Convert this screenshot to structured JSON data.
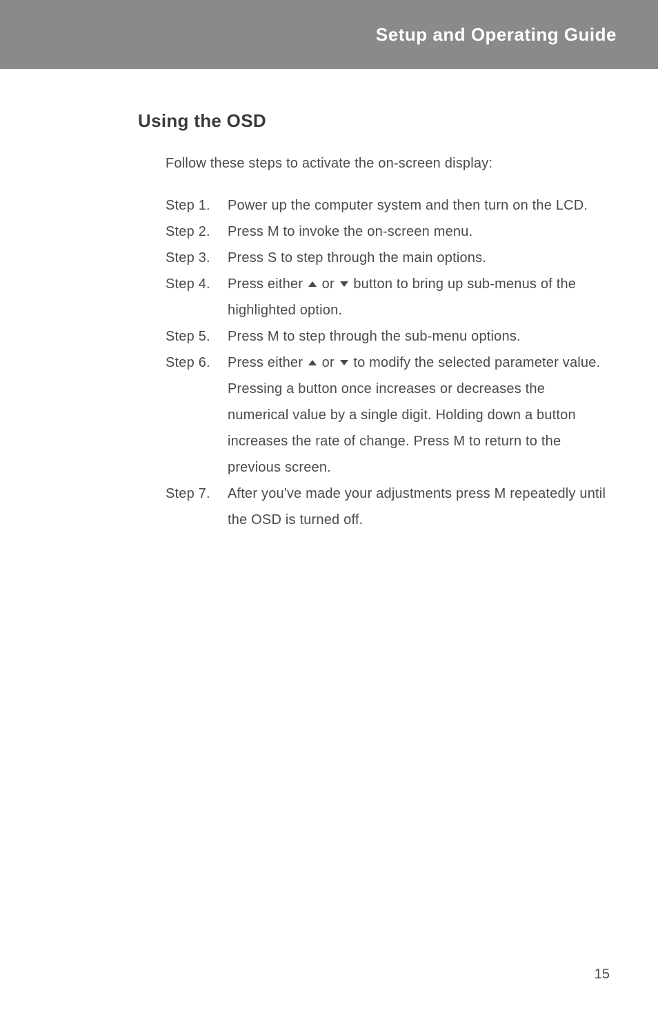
{
  "header": {
    "title": "Setup and Operating Guide"
  },
  "section": {
    "title": "Using the OSD",
    "intro": "Follow these steps to activate the on-screen display:"
  },
  "steps": [
    {
      "label": "Step 1.",
      "text": "Power up the computer system and then turn on the LCD."
    },
    {
      "label": "Step 2.",
      "text": "Press M to invoke the on-screen menu."
    },
    {
      "label": "Step 3.",
      "text": "Press S to step through the main options."
    },
    {
      "label": "Step 4.",
      "text_pre": "Press either ",
      "text_mid": " or ",
      "text_post": " button to bring up sub-menus of the highlighted option.",
      "has_arrows": true
    },
    {
      "label": "Step 5.",
      "text": "Press M to step through the sub-menu options."
    },
    {
      "label": "Step 6.",
      "text_pre": "Press either ",
      "text_mid": " or ",
      "text_post": " to modify the selected parameter value. Pressing a button once increases or decreases the numerical value by a single digit. Holding down a button increases the rate of change. Press M to return to the previous screen.",
      "has_arrows": true
    },
    {
      "label": "Step 7.",
      "text": "After you've made your adjustments press M repeatedly until the OSD is turned off."
    }
  ],
  "page_number": "15",
  "colors": {
    "header_bg": "#8a8a8a",
    "header_text": "#ffffff",
    "body_text": "#4a4a4a",
    "section_title": "#3a3a3a",
    "background": "#ffffff"
  },
  "typography": {
    "header_fontsize": 26,
    "section_title_fontsize": 26,
    "body_fontsize": 20
  }
}
